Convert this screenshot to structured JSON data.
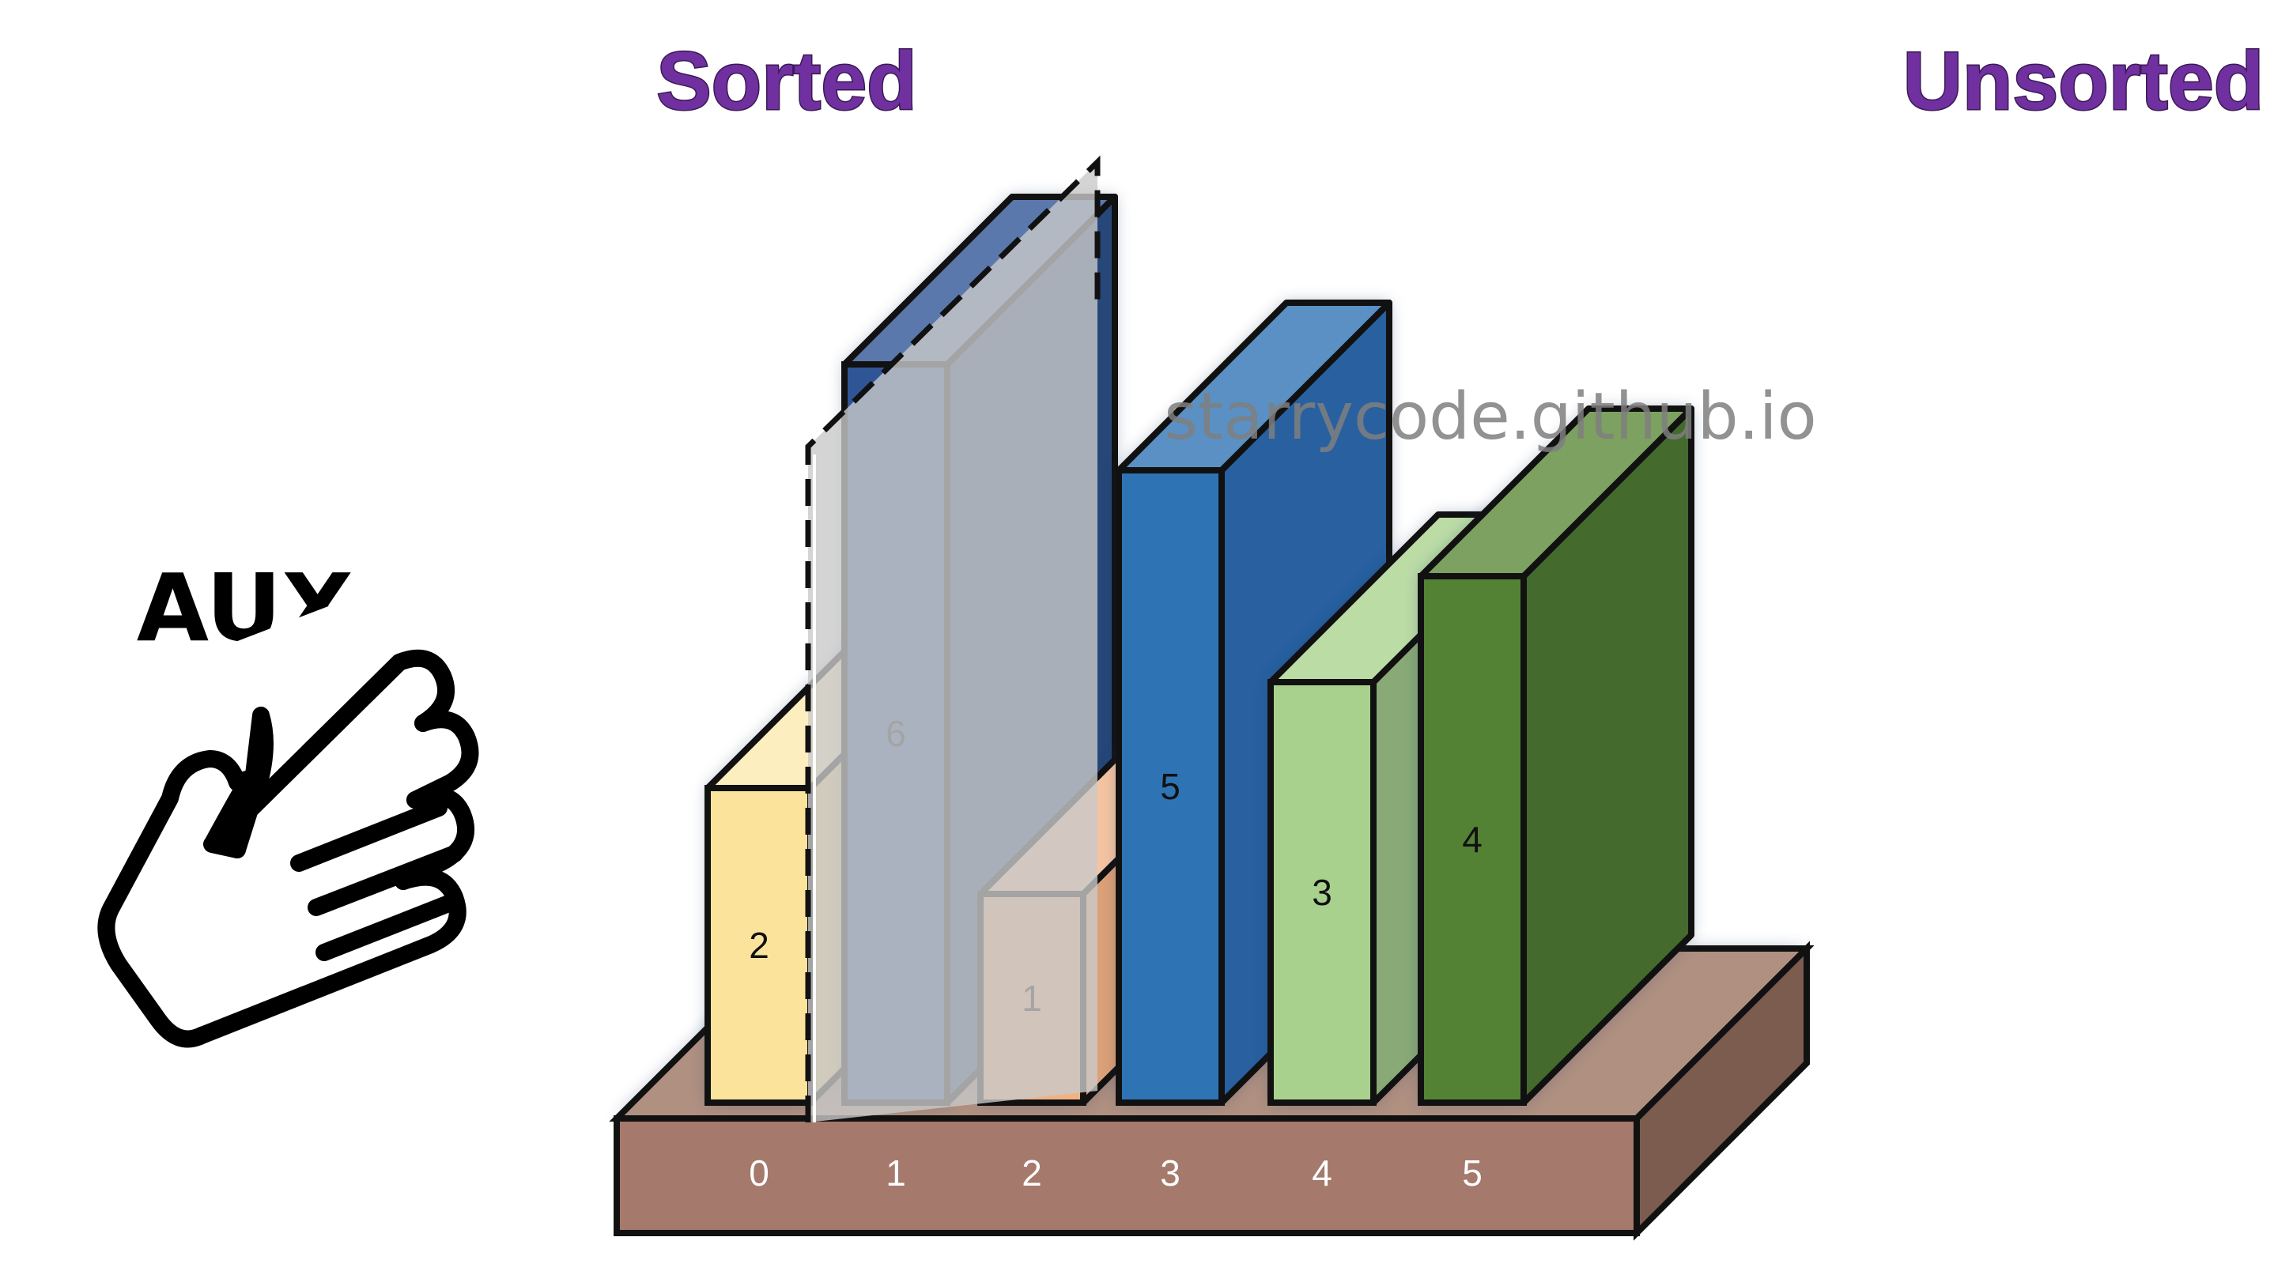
{
  "labels": {
    "sorted": "Sorted",
    "unsorted": "Unsorted",
    "aux": "AUX",
    "watermark": "starrycode.github.io"
  },
  "icons": {
    "hand": "hand-icon"
  },
  "bars": [
    {
      "value": "2",
      "index": "0",
      "front": "#fbe39c",
      "side": "#e6cf8a",
      "top": "#fdeec0"
    },
    {
      "value": "6",
      "index": "1",
      "front": "#2f5596",
      "side": "#264778",
      "top": "#5a78ab"
    },
    {
      "value": "1",
      "index": "2",
      "front": "#f1b183",
      "side": "#dba077",
      "top": "#f4c4a2"
    },
    {
      "value": "5",
      "index": "3",
      "front": "#2e74b5",
      "side": "#2860a0",
      "top": "#5a90c4"
    },
    {
      "value": "3",
      "index": "4",
      "front": "#a9d18e",
      "side": "#89a977",
      "top": "#bcdca6"
    },
    {
      "value": "4",
      "index": "5",
      "front": "#548235",
      "side": "#446a2e",
      "top": "#7da160"
    }
  ],
  "colors": {
    "base_front": "#a5796b",
    "base_top": "#b09080",
    "base_side": "#7c5c4e",
    "title": "#7030a0",
    "highlight_plane": "#c9c9c9"
  }
}
